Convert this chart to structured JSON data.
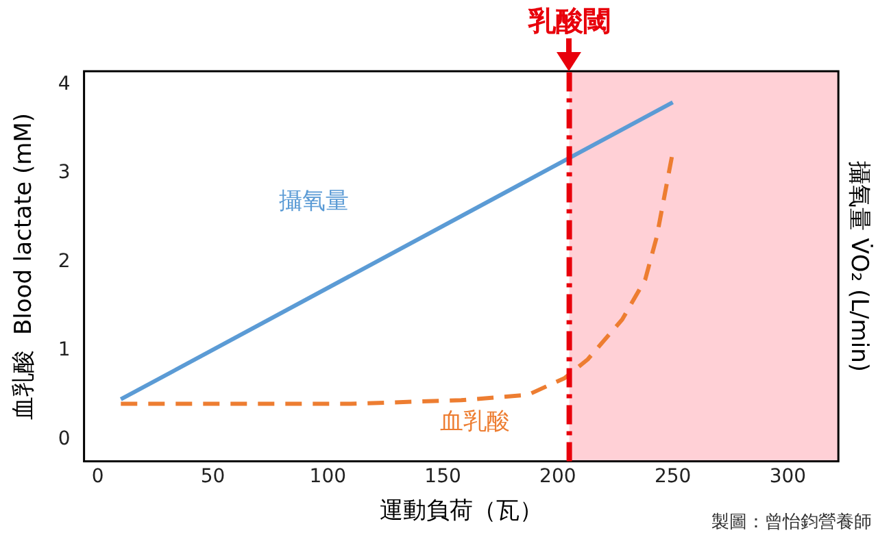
{
  "chart_data": {
    "type": "line",
    "xlabel": "運動負荷（瓦）",
    "ylabel": "血乳酸  Blood lactate (mM)",
    "y2label": "攝氧量 V̇O₂ (L/min)",
    "xlim": [
      -6,
      322
    ],
    "xticks": [
      0,
      50,
      100,
      150,
      200,
      250,
      300
    ],
    "ylim": [
      -0.25,
      4.15
    ],
    "yticks": [
      0,
      1,
      2,
      3,
      4
    ],
    "series": [
      {
        "name": "攝氧量",
        "color": "#5b9bd5",
        "line_style": "solid",
        "x": [
          10,
          250
        ],
        "values": [
          0.45,
          3.8
        ]
      },
      {
        "name": "血乳酸",
        "color": "#ed7d31",
        "line_style": "dashed",
        "x": [
          10,
          60,
          110,
          158,
          187,
          203,
          213,
          228,
          238,
          243,
          250
        ],
        "values": [
          0.4,
          0.4,
          0.4,
          0.44,
          0.5,
          0.69,
          0.9,
          1.35,
          1.8,
          2.28,
          3.24
        ]
      }
    ],
    "ref_lines": [
      {
        "axis": "x",
        "value": 205,
        "label": "乳酸閾",
        "color": "#e8000b",
        "line_style": "dashdot"
      }
    ],
    "bands": [
      {
        "axis": "x",
        "from": 205,
        "to": 322,
        "color": "#ffd0d6"
      }
    ],
    "marker": "none",
    "grid": false,
    "legend": false,
    "annotations": [
      "製圖：曾怡鈞營養師"
    ]
  }
}
